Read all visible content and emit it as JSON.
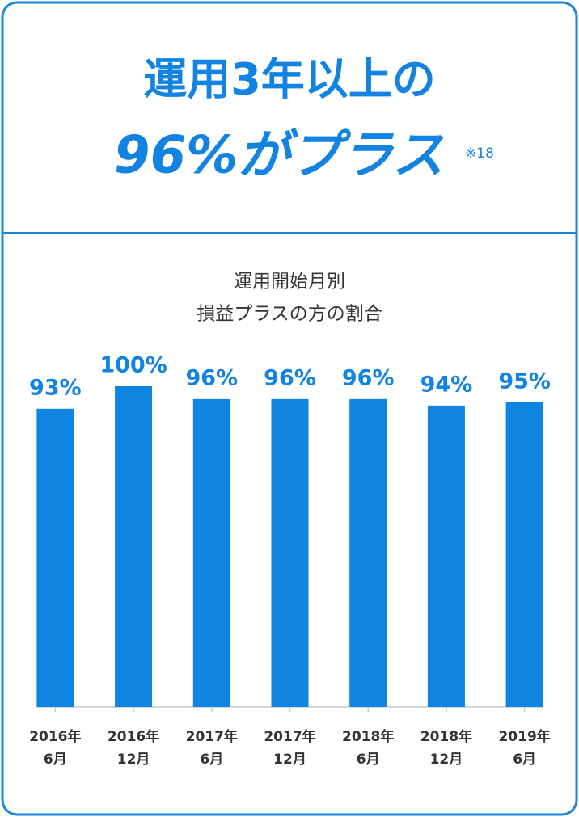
{
  "chart_data": {
    "type": "bar",
    "title": [
      "運用3年以上の",
      "96%がプラス"
    ],
    "title_note": "※18",
    "subtitle": [
      "運用開始月別",
      "損益プラスの方の割合"
    ],
    "categories": [
      [
        "2016年",
        "6月"
      ],
      [
        "2016年",
        "12月"
      ],
      [
        "2017年",
        "6月"
      ],
      [
        "2017年",
        "12月"
      ],
      [
        "2018年",
        "6月"
      ],
      [
        "2018年",
        "12月"
      ],
      [
        "2019年",
        "6月"
      ]
    ],
    "values": [
      93,
      100,
      96,
      96,
      96,
      94,
      95
    ],
    "value_labels": [
      "93%",
      "100%",
      "96%",
      "96%",
      "96%",
      "94%",
      "95%"
    ],
    "color": "#0f84e1",
    "ylim": [
      0,
      100
    ]
  }
}
